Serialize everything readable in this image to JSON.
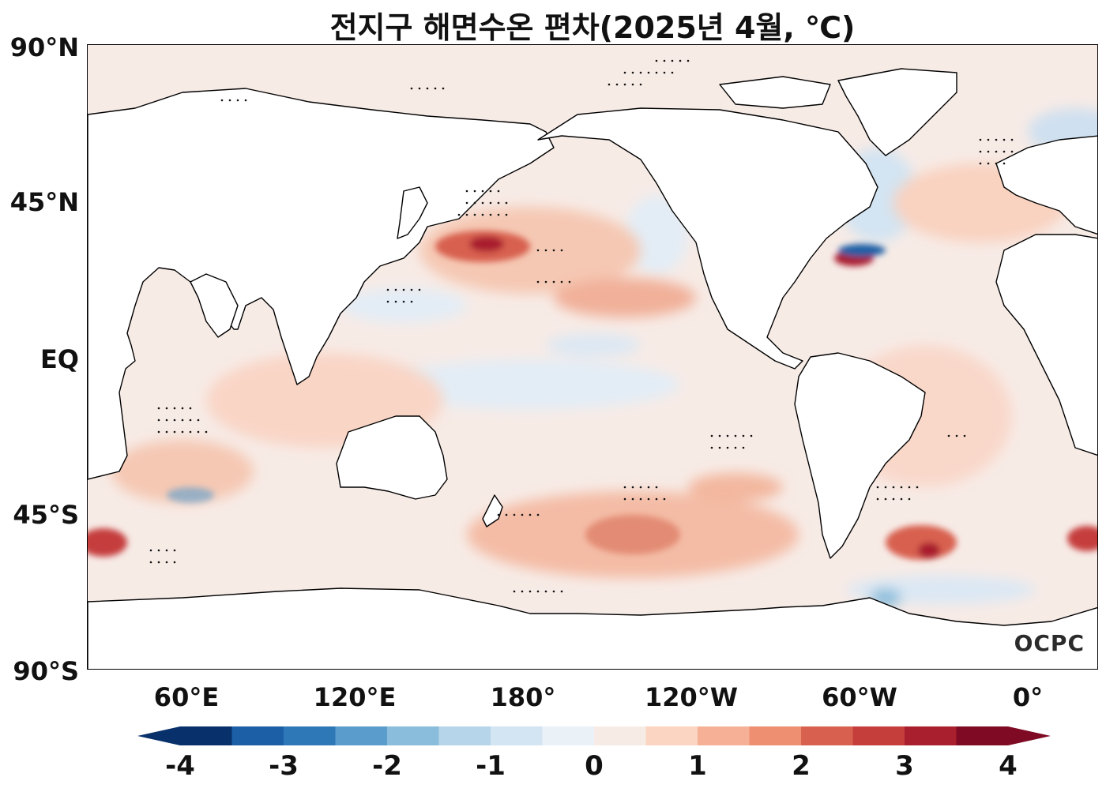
{
  "title": "전지구 해면수온 편차(2025년 4월, ℃)",
  "latitude_labels": [
    "90°N",
    "45°N",
    "EQ",
    "45°S",
    "90°S"
  ],
  "longitude_labels": [
    "60°E",
    "120°E",
    "180°",
    "120°W",
    "60°W",
    "0°"
  ],
  "colorbar": {
    "tick_labels": [
      "-4",
      "-3",
      "-2",
      "-1",
      "0",
      "1",
      "2",
      "3",
      "4"
    ],
    "colors": [
      "#08306b",
      "#1c5fa6",
      "#2f78b7",
      "#5a9ccc",
      "#89bddb",
      "#b7d5ea",
      "#d3e4f2",
      "#eaf1f7",
      "#f7ebe6",
      "#fbd4c2",
      "#f5b095",
      "#ef8f72",
      "#d8604f",
      "#c53e3c",
      "#a91f2e",
      "#7e0a23"
    ]
  },
  "logo": "OCPC",
  "land_color": "#ffffff",
  "coastline_color": "#000000"
}
